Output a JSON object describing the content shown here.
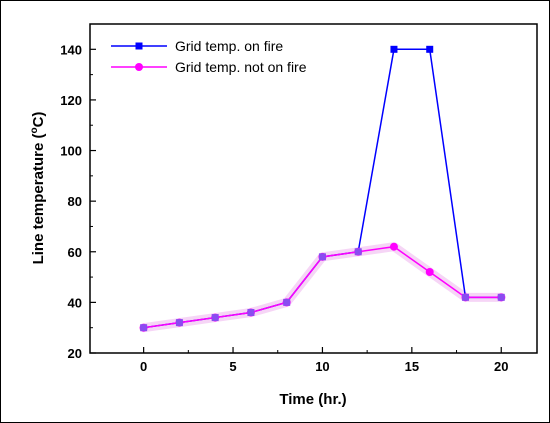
{
  "chart_data": {
    "type": "line",
    "title": "",
    "xlabel": "Time (hr.)",
    "ylabel_prefix": "Line temperature (",
    "ylabel_sup": "o",
    "ylabel_suffix": "C)",
    "xlim": [
      -3,
      22
    ],
    "ylim": [
      20,
      150
    ],
    "xticks": [
      0,
      5,
      10,
      15,
      20
    ],
    "yticks": [
      20,
      40,
      60,
      80,
      100,
      120,
      140
    ],
    "legend_position": "top-left",
    "grid": false,
    "series": [
      {
        "name": "Grid temp. on fire",
        "color": "#0000ff",
        "marker": "square",
        "x": [
          0,
          2,
          4,
          6,
          8,
          10,
          12,
          14,
          16,
          18,
          20
        ],
        "y": [
          30,
          32,
          34,
          36,
          40,
          58,
          60,
          140,
          140,
          42,
          42
        ]
      },
      {
        "name": "Grid temp. not on fire",
        "color": "#ff00ff",
        "marker": "circle",
        "x": [
          0,
          2,
          4,
          6,
          8,
          10,
          12,
          14,
          16,
          18,
          20
        ],
        "y": [
          30,
          32,
          34,
          36,
          40,
          58,
          60,
          62,
          52,
          42,
          42
        ]
      }
    ]
  }
}
